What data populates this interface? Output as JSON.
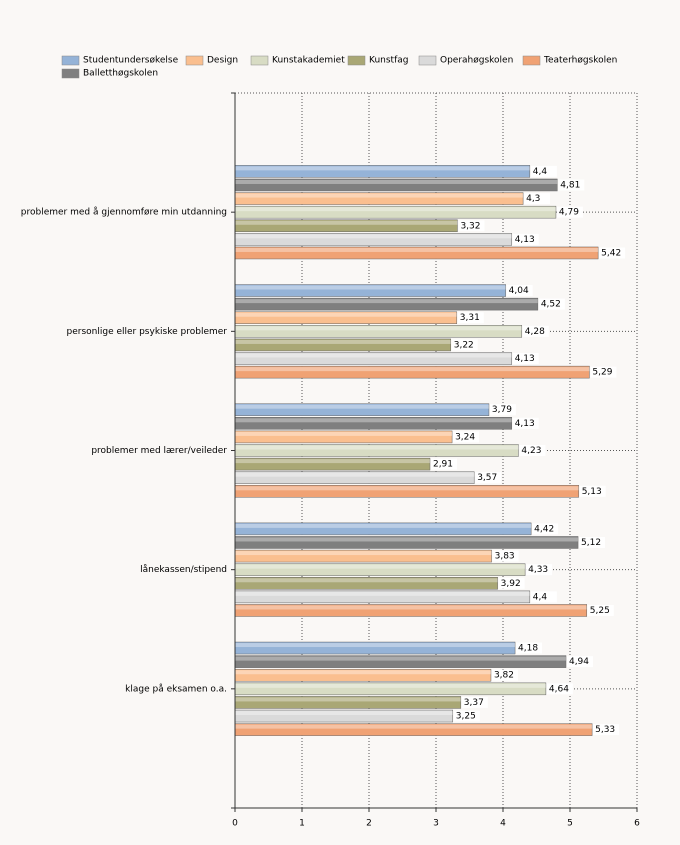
{
  "chart_data": {
    "type": "bar",
    "orientation": "horizontal",
    "categories": [
      "problemer med å gjennomføre min utdanning",
      "personlige eller psykiske problemer",
      "problemer med lærer/veileder",
      "lånekassen/stipend",
      "klage på eksamen o.a."
    ],
    "series": [
      {
        "name": "Studentundersøkelse",
        "color": "#95b3d7",
        "values": [
          4.4,
          4.04,
          3.79,
          4.42,
          4.18
        ],
        "value_labels": [
          "4,4",
          "4,04",
          "3,79",
          "4,42",
          "4,18"
        ]
      },
      {
        "name": "Design",
        "color": "#fabf8f",
        "values": [
          4.3,
          3.31,
          3.24,
          3.83,
          3.82
        ],
        "value_labels": [
          "4,3",
          "3,31",
          "3,24",
          "3,83",
          "3,82"
        ]
      },
      {
        "name": "Kunstakademiet",
        "color": "#d8dcc4",
        "values": [
          4.79,
          4.28,
          4.23,
          4.33,
          4.64
        ],
        "value_labels": [
          "4,79",
          "4,28",
          "4,23",
          "4,33",
          "4,64"
        ]
      },
      {
        "name": "Kunstfag",
        "color": "#a9a775",
        "values": [
          3.32,
          3.22,
          2.91,
          3.92,
          3.37
        ],
        "value_labels": [
          "3,32",
          "3,22",
          "2,91",
          "3,92",
          "3,37"
        ]
      },
      {
        "name": "Operahøgskolen",
        "color": "#dadada",
        "values": [
          4.13,
          4.13,
          3.57,
          4.4,
          3.25
        ],
        "value_labels": [
          "4,13",
          "4,13",
          "3,57",
          "4,4",
          "3,25"
        ]
      },
      {
        "name": "Teaterhøgskolen",
        "color": "#f0a274",
        "values": [
          5.42,
          5.29,
          5.13,
          5.25,
          5.33
        ],
        "value_labels": [
          "5,42",
          "5,29",
          "5,13",
          "5,25",
          "5,33"
        ]
      },
      {
        "name": "Balletthøgskolen",
        "color": "#7f7f7f",
        "values": [
          4.81,
          4.52,
          4.13,
          5.12,
          4.94
        ],
        "value_labels": [
          "4,81",
          "4,52",
          "4,13",
          "5,12",
          "4,94"
        ]
      }
    ],
    "xlim": [
      0,
      6
    ],
    "xticks": [
      0,
      1,
      2,
      3,
      4,
      5,
      6
    ],
    "grid": true
  }
}
